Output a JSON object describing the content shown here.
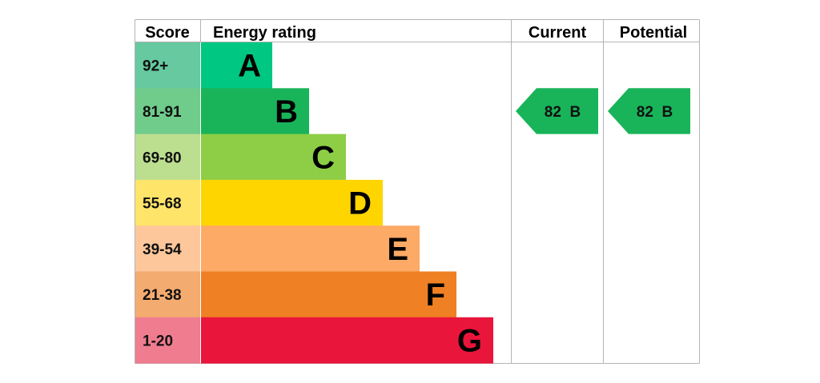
{
  "chart_data": {
    "type": "bar",
    "headers": {
      "score": "Score",
      "energy_rating": "Energy rating",
      "current": "Current",
      "potential": "Potential"
    },
    "bands": [
      {
        "letter": "A",
        "score": "92+",
        "min": 92,
        "max": 100,
        "color": "#00c781",
        "score_bg": "#66c9a0"
      },
      {
        "letter": "B",
        "score": "81-91",
        "min": 81,
        "max": 91,
        "color": "#19b459",
        "score_bg": "#6fcc8a"
      },
      {
        "letter": "C",
        "score": "69-80",
        "min": 69,
        "max": 80,
        "color": "#8dce46",
        "score_bg": "#bbdf8f"
      },
      {
        "letter": "D",
        "score": "55-68",
        "min": 55,
        "max": 68,
        "color": "#ffd500",
        "score_bg": "#ffe46a"
      },
      {
        "letter": "E",
        "score": "39-54",
        "min": 39,
        "max": 54,
        "color": "#fcaa65",
        "score_bg": "#fdc79b"
      },
      {
        "letter": "F",
        "score": "21-38",
        "min": 21,
        "max": 38,
        "color": "#ef8023",
        "score_bg": "#f4ab70"
      },
      {
        "letter": "G",
        "score": "1-20",
        "min": 1,
        "max": 20,
        "color": "#e9153b",
        "score_bg": "#f07c8f"
      }
    ],
    "current": {
      "value": 82,
      "band": "B",
      "label": "82  B",
      "color": "#19b459"
    },
    "potential": {
      "value": 82,
      "band": "B",
      "label": "82  B",
      "color": "#19b459"
    }
  }
}
